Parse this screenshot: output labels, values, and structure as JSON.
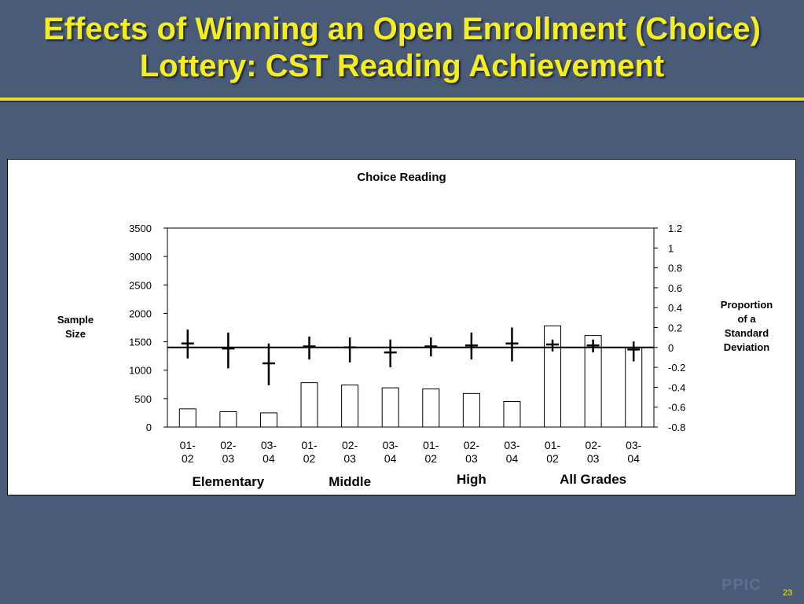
{
  "slide": {
    "title_line1": "Effects of Winning an Open Enrollment (Choice)",
    "title_line2": "Lottery: CST Reading Achievement",
    "footer_logo": "PPIC",
    "page_number": "23"
  },
  "colors": {
    "background": "#4a5b78",
    "title": "#f5ee1f",
    "rule": "#e6dc2a"
  },
  "chart_data": {
    "type": "bar",
    "title": "Choice Reading",
    "ylabel_left": [
      "Sample",
      "Size"
    ],
    "ylabel_right": [
      "Proportion",
      "of a",
      "Standard",
      "Deviation"
    ],
    "categories": [
      [
        "01-",
        "02"
      ],
      [
        "02-",
        "03"
      ],
      [
        "03-",
        "04"
      ],
      [
        "01-",
        "02"
      ],
      [
        "02-",
        "03"
      ],
      [
        "03-",
        "04"
      ],
      [
        "01-",
        "02"
      ],
      [
        "02-",
        "03"
      ],
      [
        "03-",
        "04"
      ],
      [
        "01-",
        "02"
      ],
      [
        "02-",
        "03"
      ],
      [
        "03-",
        "04"
      ]
    ],
    "groups": [
      "Elementary",
      "Middle",
      "High",
      "All Grades"
    ],
    "series": [
      {
        "axis": "left",
        "kind": "bar",
        "values": [
          320,
          270,
          250,
          780,
          740,
          690,
          670,
          590,
          450,
          1780,
          1610,
          1400
        ]
      },
      {
        "axis": "right",
        "kind": "estimate-with-interval",
        "values": [
          0.04,
          -0.01,
          -0.16,
          0.01,
          0.0,
          -0.05,
          0.01,
          0.02,
          0.04,
          0.03,
          0.02,
          -0.02
        ],
        "lower": [
          -0.11,
          -0.21,
          -0.38,
          -0.12,
          -0.15,
          -0.2,
          -0.09,
          -0.12,
          -0.14,
          -0.04,
          -0.05,
          -0.14
        ],
        "upper": [
          0.18,
          0.15,
          0.04,
          0.11,
          0.1,
          0.08,
          0.1,
          0.15,
          0.2,
          0.08,
          0.08,
          0.06
        ]
      }
    ],
    "ylim_left": [
      0,
      3500
    ],
    "yticks_left": [
      "0",
      "500",
      "1000",
      "1500",
      "2000",
      "2500",
      "3000",
      "3500"
    ],
    "ylim_right": [
      -0.8,
      1.2
    ],
    "yticks_right": [
      "-0.8",
      "-0.6",
      "-0.4",
      "-0.2",
      "0",
      "0.2",
      "0.4",
      "0.6",
      "0.8",
      "1",
      "1.2"
    ],
    "zero_line": true,
    "grid": false
  }
}
